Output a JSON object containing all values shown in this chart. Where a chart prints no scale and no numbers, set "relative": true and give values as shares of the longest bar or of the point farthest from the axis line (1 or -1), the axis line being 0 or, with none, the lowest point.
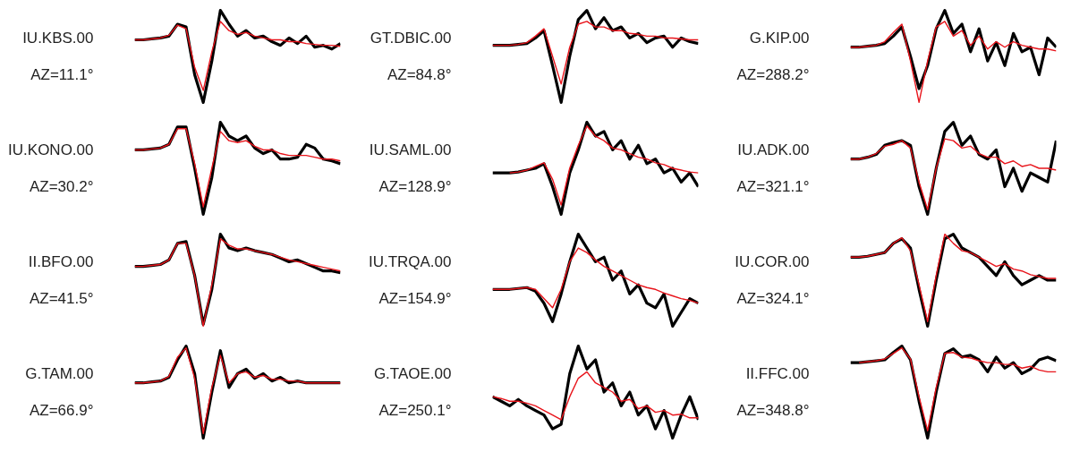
{
  "chart_data": [
    {
      "type": "line",
      "relative": true,
      "tick_labels": false,
      "title": "IU.KBS.00",
      "subtitle": "AZ=11.1°",
      "categories": [
        null,
        null,
        null,
        null,
        null,
        null,
        null,
        null,
        null,
        null,
        null,
        null,
        null,
        null,
        null,
        null,
        null,
        null,
        null,
        null,
        null,
        null,
        null,
        null,
        null
      ],
      "series": [
        {
          "color": "#000000",
          "values": [
            0.68,
            0.68,
            0.69,
            0.7,
            0.72,
            0.85,
            0.82,
            0.3,
            0.0,
            0.45,
            1.0,
            0.85,
            0.72,
            0.78,
            0.7,
            0.72,
            0.66,
            0.62,
            0.7,
            0.64,
            0.72,
            0.6,
            0.62,
            0.58,
            0.64
          ]
        },
        {
          "color": "#e8141b",
          "values": [
            0.68,
            0.68,
            0.69,
            0.7,
            0.73,
            0.84,
            0.8,
            0.38,
            0.13,
            0.55,
            0.88,
            0.78,
            0.74,
            0.76,
            0.72,
            0.7,
            0.68,
            0.68,
            0.66,
            0.66,
            0.64,
            0.63,
            0.62,
            0.62,
            0.61
          ]
        }
      ]
    },
    {
      "type": "line",
      "relative": true,
      "tick_labels": false,
      "title": "GT.DBIC.00",
      "subtitle": "AZ=84.8°",
      "categories": [
        null,
        null,
        null,
        null,
        null,
        null,
        null,
        null,
        null,
        null,
        null,
        null,
        null,
        null,
        null,
        null,
        null,
        null,
        null,
        null,
        null,
        null,
        null,
        null,
        null
      ],
      "series": [
        {
          "color": "#000000",
          "values": [
            0.62,
            0.62,
            0.62,
            0.63,
            0.64,
            0.7,
            0.78,
            0.4,
            0.0,
            0.5,
            0.9,
            1.0,
            0.8,
            0.92,
            0.78,
            0.82,
            0.7,
            0.75,
            0.65,
            0.7,
            0.72,
            0.6,
            0.7,
            0.66,
            0.64
          ]
        },
        {
          "color": "#e8141b",
          "values": [
            0.62,
            0.62,
            0.62,
            0.63,
            0.65,
            0.72,
            0.8,
            0.5,
            0.2,
            0.6,
            0.85,
            0.88,
            0.82,
            0.82,
            0.78,
            0.78,
            0.75,
            0.74,
            0.72,
            0.72,
            0.7,
            0.7,
            0.69,
            0.68,
            0.68
          ]
        }
      ]
    },
    {
      "type": "line",
      "relative": true,
      "tick_labels": false,
      "title": "G.KIP.00",
      "subtitle": "AZ=288.2°",
      "categories": [
        null,
        null,
        null,
        null,
        null,
        null,
        null,
        null,
        null,
        null,
        null,
        null,
        null,
        null,
        null,
        null,
        null,
        null,
        null,
        null,
        null,
        null,
        null,
        null,
        null
      ],
      "series": [
        {
          "color": "#000000",
          "values": [
            0.6,
            0.6,
            0.61,
            0.62,
            0.64,
            0.72,
            0.82,
            0.5,
            0.15,
            0.4,
            0.8,
            1.0,
            0.75,
            0.85,
            0.55,
            0.8,
            0.45,
            0.65,
            0.4,
            0.75,
            0.55,
            0.6,
            0.3,
            0.7,
            0.6
          ]
        },
        {
          "color": "#e8141b",
          "values": [
            0.6,
            0.6,
            0.61,
            0.62,
            0.66,
            0.76,
            0.85,
            0.45,
            0.0,
            0.45,
            0.82,
            0.88,
            0.72,
            0.78,
            0.62,
            0.72,
            0.58,
            0.66,
            0.6,
            0.66,
            0.62,
            0.6,
            0.58,
            0.58,
            0.56
          ]
        }
      ]
    },
    {
      "type": "line",
      "relative": true,
      "tick_labels": false,
      "title": "IU.KONO.00",
      "subtitle": "AZ=30.2°",
      "categories": [
        null,
        null,
        null,
        null,
        null,
        null,
        null,
        null,
        null,
        null,
        null,
        null,
        null,
        null,
        null,
        null,
        null,
        null,
        null,
        null,
        null,
        null,
        null,
        null,
        null
      ],
      "series": [
        {
          "color": "#000000",
          "values": [
            0.7,
            0.7,
            0.71,
            0.72,
            0.76,
            0.95,
            0.95,
            0.5,
            0.0,
            0.4,
            1.0,
            0.85,
            0.8,
            0.85,
            0.72,
            0.66,
            0.7,
            0.6,
            0.6,
            0.62,
            0.76,
            0.72,
            0.6,
            0.58,
            0.55
          ]
        },
        {
          "color": "#e8141b",
          "values": [
            0.7,
            0.7,
            0.71,
            0.72,
            0.76,
            0.93,
            0.93,
            0.55,
            0.08,
            0.5,
            0.9,
            0.8,
            0.78,
            0.8,
            0.74,
            0.7,
            0.7,
            0.66,
            0.64,
            0.64,
            0.64,
            0.62,
            0.6,
            0.6,
            0.58
          ]
        }
      ]
    },
    {
      "type": "line",
      "relative": true,
      "tick_labels": false,
      "title": "IU.SAML.00",
      "subtitle": "AZ=128.9°",
      "categories": [
        null,
        null,
        null,
        null,
        null,
        null,
        null,
        null,
        null,
        null,
        null,
        null,
        null,
        null,
        null,
        null,
        null,
        null,
        null,
        null,
        null,
        null,
        null,
        null,
        null
      ],
      "series": [
        {
          "color": "#000000",
          "values": [
            0.45,
            0.45,
            0.45,
            0.46,
            0.48,
            0.5,
            0.55,
            0.3,
            0.0,
            0.45,
            0.7,
            1.0,
            0.85,
            0.9,
            0.7,
            0.8,
            0.6,
            0.75,
            0.55,
            0.6,
            0.45,
            0.5,
            0.35,
            0.45,
            0.3
          ]
        },
        {
          "color": "#e8141b",
          "values": [
            null,
            null,
            0.45,
            0.46,
            0.48,
            0.52,
            0.56,
            0.38,
            0.1,
            0.5,
            0.75,
            0.96,
            0.85,
            0.8,
            0.72,
            0.7,
            0.66,
            0.62,
            0.6,
            0.56,
            0.54,
            0.5,
            0.48,
            0.46,
            0.45
          ]
        }
      ]
    },
    {
      "type": "line",
      "relative": true,
      "tick_labels": false,
      "title": "IU.ADK.00",
      "subtitle": "AZ=321.1°",
      "categories": [
        null,
        null,
        null,
        null,
        null,
        null,
        null,
        null,
        null,
        null,
        null,
        null,
        null,
        null,
        null,
        null,
        null,
        null,
        null,
        null,
        null,
        null,
        null,
        null,
        null
      ],
      "series": [
        {
          "color": "#000000",
          "values": [
            0.6,
            0.6,
            0.62,
            0.65,
            0.75,
            0.78,
            0.8,
            0.75,
            0.3,
            0.0,
            0.5,
            0.9,
            1.0,
            0.75,
            0.85,
            0.65,
            0.6,
            0.7,
            0.3,
            0.5,
            0.25,
            0.45,
            0.4,
            0.35,
            0.8
          ]
        },
        {
          "color": "#e8141b",
          "values": [
            0.6,
            0.6,
            0.62,
            0.66,
            0.74,
            0.76,
            0.8,
            0.72,
            0.35,
            0.05,
            0.5,
            0.82,
            0.8,
            0.72,
            0.74,
            0.66,
            0.62,
            0.62,
            0.55,
            0.58,
            0.52,
            0.54,
            0.5,
            0.5,
            0.48
          ]
        }
      ]
    },
    {
      "type": "line",
      "relative": true,
      "tick_labels": false,
      "title": "II.BFO.00",
      "subtitle": "AZ=41.5°",
      "categories": [
        null,
        null,
        null,
        null,
        null,
        null,
        null,
        null,
        null,
        null,
        null,
        null,
        null,
        null,
        null,
        null,
        null,
        null,
        null,
        null,
        null,
        null,
        null,
        null,
        null
      ],
      "series": [
        {
          "color": "#000000",
          "values": [
            0.65,
            0.65,
            0.66,
            0.67,
            0.72,
            0.9,
            0.92,
            0.55,
            0.02,
            0.4,
            1.0,
            0.85,
            0.82,
            0.85,
            0.82,
            0.8,
            0.78,
            0.74,
            0.7,
            0.72,
            0.68,
            0.64,
            0.6,
            0.6,
            0.58
          ]
        },
        {
          "color": "#e8141b",
          "values": [
            0.65,
            0.65,
            0.66,
            0.67,
            0.72,
            0.9,
            0.9,
            0.55,
            0.0,
            0.45,
            0.95,
            0.88,
            0.84,
            0.84,
            0.82,
            0.8,
            0.78,
            0.75,
            0.72,
            0.7,
            0.68,
            0.66,
            0.64,
            0.62,
            0.6
          ]
        }
      ]
    },
    {
      "type": "line",
      "relative": true,
      "tick_labels": false,
      "title": "IU.TRQA.00",
      "subtitle": "AZ=154.9°",
      "categories": [
        null,
        null,
        null,
        null,
        null,
        null,
        null,
        null,
        null,
        null,
        null,
        null,
        null,
        null,
        null,
        null,
        null,
        null,
        null,
        null,
        null,
        null,
        null,
        null,
        null
      ],
      "series": [
        {
          "color": "#000000",
          "values": [
            0.4,
            0.4,
            0.4,
            0.41,
            0.42,
            0.38,
            0.25,
            0.05,
            0.35,
            0.7,
            1.0,
            0.85,
            0.7,
            0.75,
            0.5,
            0.6,
            0.35,
            0.45,
            0.25,
            0.2,
            0.35,
            0.0,
            0.15,
            0.3,
            0.25
          ]
        },
        {
          "color": "#e8141b",
          "values": [
            0.4,
            0.4,
            0.4,
            0.41,
            0.42,
            0.4,
            0.3,
            0.2,
            0.4,
            0.7,
            0.85,
            0.8,
            0.72,
            0.65,
            0.6,
            0.55,
            0.5,
            0.45,
            0.42,
            0.4,
            0.36,
            0.33,
            0.3,
            0.28,
            0.25
          ]
        }
      ]
    },
    {
      "type": "line",
      "relative": true,
      "tick_labels": false,
      "title": "IU.COR.00",
      "subtitle": "AZ=324.1°",
      "categories": [
        null,
        null,
        null,
        null,
        null,
        null,
        null,
        null,
        null,
        null,
        null,
        null,
        null,
        null,
        null,
        null,
        null,
        null,
        null,
        null,
        null,
        null,
        null,
        null,
        null
      ],
      "series": [
        {
          "color": "#000000",
          "values": [
            0.75,
            0.75,
            0.76,
            0.78,
            0.8,
            0.9,
            0.95,
            0.85,
            0.4,
            0.0,
            0.5,
            0.95,
            1.0,
            0.85,
            0.8,
            0.75,
            0.65,
            0.55,
            0.7,
            0.55,
            0.45,
            0.5,
            0.55,
            0.5,
            0.5
          ]
        },
        {
          "color": "#e8141b",
          "values": [
            0.75,
            0.75,
            0.76,
            0.78,
            0.8,
            0.9,
            0.96,
            0.82,
            0.45,
            0.05,
            0.55,
            1.0,
            0.9,
            0.82,
            0.8,
            0.75,
            0.7,
            0.65,
            0.68,
            0.62,
            0.6,
            0.56,
            0.54,
            0.52,
            0.52
          ]
        }
      ]
    },
    {
      "type": "line",
      "relative": true,
      "tick_labels": false,
      "title": "G.TAM.00",
      "subtitle": "AZ=66.9°",
      "categories": [
        null,
        null,
        null,
        null,
        null,
        null,
        null,
        null,
        null,
        null,
        null,
        null,
        null,
        null,
        null,
        null,
        null,
        null,
        null,
        null,
        null,
        null,
        null,
        null,
        null
      ],
      "series": [
        {
          "color": "#000000",
          "values": [
            0.6,
            0.6,
            0.61,
            0.62,
            0.66,
            0.85,
            1.0,
            0.7,
            0.0,
            0.5,
            0.95,
            0.55,
            0.7,
            0.75,
            0.65,
            0.7,
            0.62,
            0.66,
            0.6,
            0.62,
            0.6,
            0.6,
            0.6,
            0.6,
            0.6
          ]
        },
        {
          "color": "#e8141b",
          "values": [
            0.6,
            0.6,
            0.61,
            0.62,
            0.67,
            0.88,
            0.98,
            0.65,
            0.05,
            0.55,
            0.9,
            0.6,
            0.7,
            0.72,
            0.66,
            0.68,
            0.64,
            0.64,
            0.62,
            0.62,
            0.6,
            0.6,
            0.6,
            0.6,
            0.6
          ]
        }
      ]
    },
    {
      "type": "line",
      "relative": true,
      "tick_labels": false,
      "title": "G.TAOE.00",
      "subtitle": "AZ=250.1°",
      "categories": [
        null,
        null,
        null,
        null,
        null,
        null,
        null,
        null,
        null,
        null,
        null,
        null,
        null,
        null,
        null,
        null,
        null,
        null,
        null,
        null,
        null,
        null,
        null,
        null,
        null
      ],
      "series": [
        {
          "color": "#000000",
          "values": [
            0.45,
            0.4,
            0.35,
            0.42,
            0.35,
            0.3,
            0.25,
            0.1,
            0.15,
            0.7,
            1.0,
            0.75,
            0.85,
            0.5,
            0.6,
            0.35,
            0.5,
            0.25,
            0.35,
            0.1,
            0.3,
            0.0,
            0.25,
            0.45,
            0.2
          ]
        },
        {
          "color": "#e8141b",
          "values": [
            0.45,
            0.43,
            0.4,
            0.4,
            0.38,
            0.35,
            0.3,
            0.25,
            0.2,
            0.45,
            0.65,
            0.72,
            0.6,
            0.55,
            0.5,
            0.4,
            0.42,
            0.32,
            0.35,
            0.28,
            0.3,
            0.25,
            0.26,
            0.22,
            0.22
          ]
        }
      ]
    },
    {
      "type": "line",
      "relative": true,
      "tick_labels": false,
      "title": "II.FFC.00",
      "subtitle": "AZ=348.8°",
      "categories": [
        null,
        null,
        null,
        null,
        null,
        null,
        null,
        null,
        null,
        null,
        null,
        null,
        null,
        null,
        null,
        null,
        null,
        null,
        null,
        null,
        null,
        null,
        null,
        null,
        null
      ],
      "series": [
        {
          "color": "#000000",
          "values": [
            0.82,
            0.82,
            0.83,
            0.84,
            0.85,
            0.93,
            1.0,
            0.85,
            0.4,
            0.0,
            0.5,
            0.92,
            0.97,
            0.88,
            0.9,
            0.85,
            0.72,
            0.88,
            0.76,
            0.82,
            0.7,
            0.75,
            0.85,
            0.88,
            0.84
          ]
        },
        {
          "color": "#e8141b",
          "values": [
            null,
            0.82,
            0.83,
            0.84,
            0.86,
            0.92,
            0.98,
            0.86,
            0.45,
            0.08,
            0.55,
            0.92,
            0.93,
            0.88,
            0.87,
            0.84,
            0.82,
            0.82,
            0.8,
            0.8,
            0.76,
            0.78,
            0.74,
            0.72,
            0.72
          ]
        }
      ]
    }
  ]
}
